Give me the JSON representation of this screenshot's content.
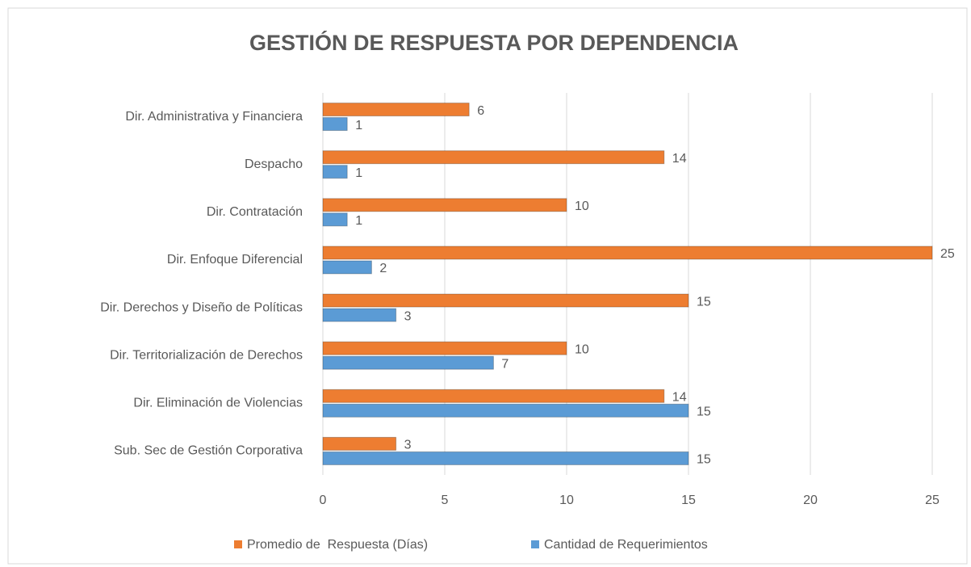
{
  "chart_data": {
    "type": "hbar",
    "title": "GESTIÓN DE RESPUESTA POR DEPENDENCIA",
    "categories": [
      "Dir. Administrativa y Financiera",
      "Despacho",
      "Dir. Contratación",
      "Dir. Enfoque Diferencial",
      "Dir. Derechos y Diseño de Políticas",
      "Dir. Territorialización de Derechos",
      "Dir. Eliminación de Violencias",
      "Sub. Sec de Gestión Corporativa"
    ],
    "series": [
      {
        "name": "Promedio de  Respuesta (Días)",
        "color": "#ed7d31",
        "values": [
          6,
          14,
          10,
          25,
          15,
          10,
          14,
          3
        ]
      },
      {
        "name": "Cantidad de Requerimientos",
        "color": "#5b9bd5",
        "values": [
          1,
          1,
          1,
          2,
          3,
          7,
          15,
          15
        ]
      }
    ],
    "xlim": [
      0,
      25
    ],
    "xticks": [
      0,
      5,
      10,
      15,
      20,
      25
    ],
    "grid": true,
    "legend": "bottom"
  }
}
